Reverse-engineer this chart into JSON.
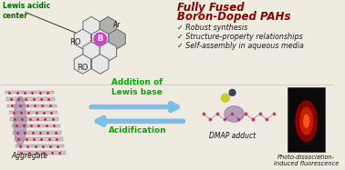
{
  "bg_color": "#f0ebe0",
  "title_line1": "Fully Fused",
  "title_line2": "Boron-Doped PAHs",
  "title_color": "#8b0000",
  "bullet1": "✓ Robust synthesis",
  "bullet2": "✓ Structure-property relationships",
  "bullet3": "✓ Self-assembly in aqueous media",
  "bullet_color": "#1a1a1a",
  "label_lewis": "Lewis acidic\ncenter",
  "label_lewis_color": "#006600",
  "label_aggregate": "Aggregate",
  "label_dmap": "DMAP adduct",
  "label_photo": "Photo-dissociation-\ninduced fluorescence",
  "arrow_color": "#7bbfe8",
  "addition_text": "Addition of\nLewis base",
  "addition_color": "#00aa00",
  "acid_text": "Acidification",
  "acid_color": "#00aa00",
  "ro_color": "#222222",
  "boron_color": "#cc44cc",
  "hex_color": "#666666",
  "hex_fill": "#dddddd",
  "gray_hex_fill": "#aaaaaa"
}
